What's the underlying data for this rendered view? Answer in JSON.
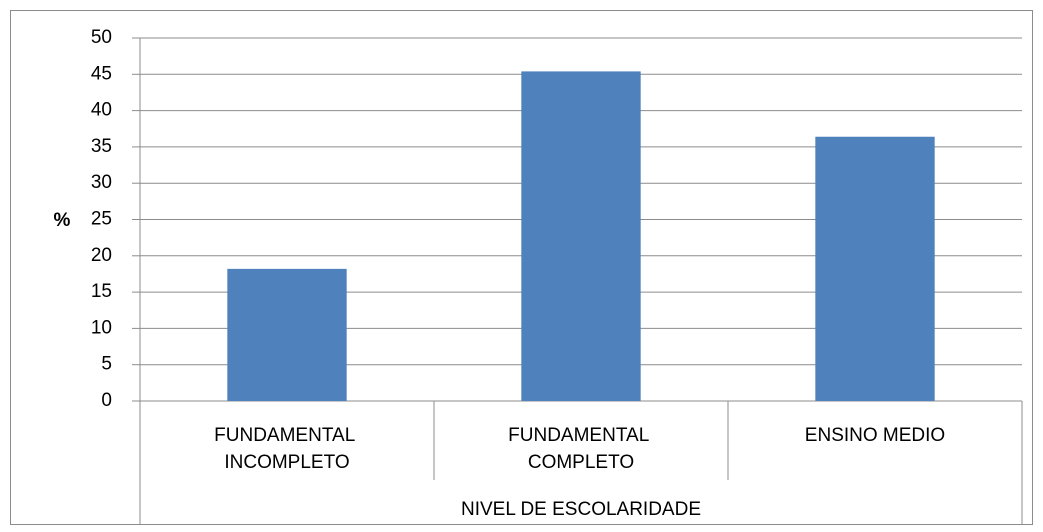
{
  "chart_data": {
    "type": "bar",
    "categories": [
      "FUNDAMENTAL INCOMPLETO",
      "FUNDAMENTAL COMPLETO",
      "ENSINO MEDIO"
    ],
    "values": [
      18.2,
      45.4,
      36.4
    ],
    "color": "#4f81bd",
    "ylim": [
      0,
      50
    ],
    "yticks": [
      0,
      5,
      10,
      15,
      20,
      25,
      30,
      35,
      40,
      45,
      50
    ],
    "y_label": "%",
    "x_label": "NIVEL DE ESCOLARIDADE",
    "grid": true
  }
}
